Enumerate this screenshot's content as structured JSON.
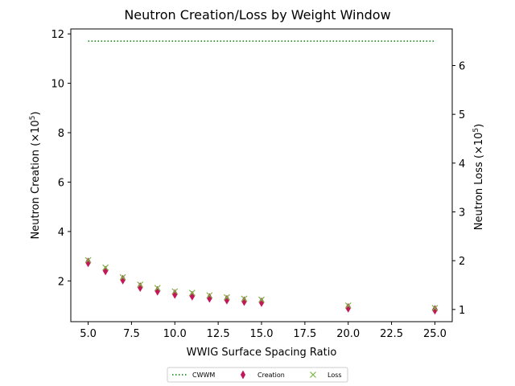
{
  "chart_data": {
    "type": "scatter",
    "title": "Neutron Creation/Loss by Weight Window",
    "xlabel": "WWIG Surface Spacing Ratio",
    "ylabel_left": "Neutron Creation (×10",
    "ylabel_left_exp": "5",
    "ylabel_left_close": ")",
    "ylabel_right": "Neutron Loss (×10",
    "ylabel_right_exp": "5",
    "ylabel_right_close": ")",
    "xlim": [
      4.0,
      26.0
    ],
    "ylim_left": [
      0.35,
      12.2
    ],
    "ylim_right": [
      0.75,
      6.75
    ],
    "x_ticks": [
      5.0,
      7.5,
      10.0,
      12.5,
      15.0,
      17.5,
      20.0,
      22.5,
      25.0
    ],
    "x_tick_labels": [
      "5.0",
      "7.5",
      "10.0",
      "12.5",
      "15.0",
      "17.5",
      "20.0",
      "22.5",
      "25.0"
    ],
    "y_left_ticks": [
      2,
      4,
      6,
      8,
      10,
      12
    ],
    "y_left_tick_labels": [
      "2",
      "4",
      "6",
      "8",
      "10",
      "12"
    ],
    "y_right_ticks": [
      1,
      2,
      3,
      4,
      5,
      6
    ],
    "y_right_tick_labels": [
      "1",
      "2",
      "3",
      "4",
      "5",
      "6"
    ],
    "legend_position": "bottom-center",
    "legend_labels": [
      "CWWM",
      "Creation",
      "Loss"
    ],
    "series": [
      {
        "name": "CWWM",
        "kind": "line",
        "style": "dotted",
        "axis": "right",
        "color": "#008000",
        "x": [
          5,
          25
        ],
        "y": [
          6.5,
          6.5
        ]
      },
      {
        "name": "Creation",
        "kind": "marker",
        "marker": "thin-diamond",
        "axis": "left",
        "color": "#c2185b",
        "x": [
          5,
          6,
          7,
          8,
          9,
          10,
          11,
          12,
          13,
          14,
          15,
          20,
          25
        ],
        "y": [
          2.75,
          2.42,
          2.05,
          1.75,
          1.6,
          1.47,
          1.4,
          1.31,
          1.24,
          1.18,
          1.14,
          0.91,
          0.83
        ]
      },
      {
        "name": "Loss",
        "kind": "marker",
        "marker": "x",
        "axis": "right",
        "color": "#7cb342",
        "x": [
          5,
          6,
          7,
          8,
          9,
          10,
          11,
          12,
          13,
          14,
          15,
          20,
          25
        ],
        "y": [
          2.01,
          1.86,
          1.66,
          1.51,
          1.44,
          1.37,
          1.34,
          1.29,
          1.25,
          1.22,
          1.2,
          1.08,
          1.03
        ]
      }
    ]
  }
}
